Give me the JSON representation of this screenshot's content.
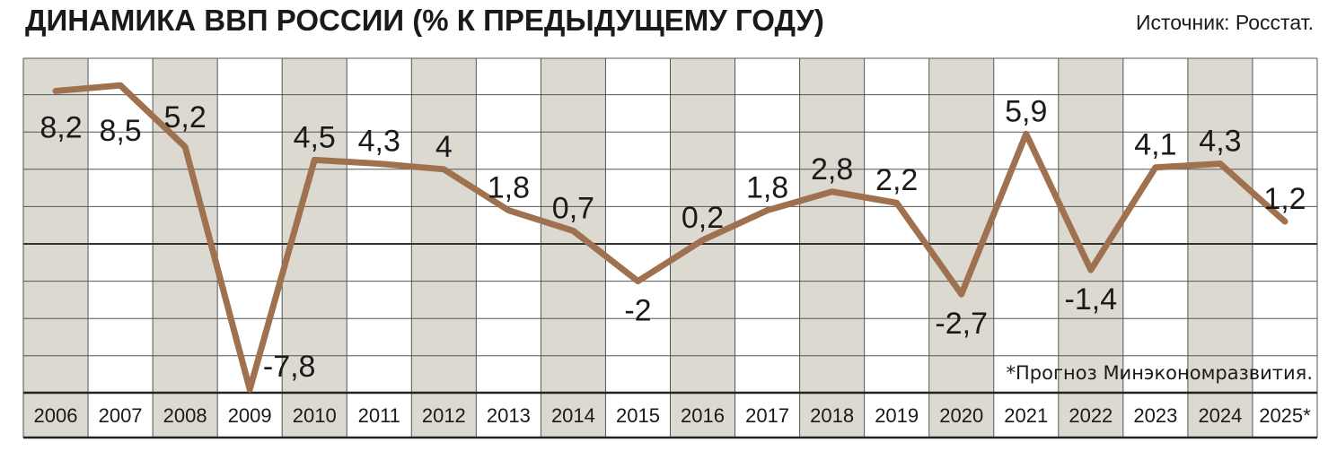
{
  "header": {
    "title": "ДИНАМИКА ВВП РОССИИ (% К ПРЕДЫДУЩЕМУ ГОДУ)",
    "source": "Источник: Росстат."
  },
  "footnote": "*Прогноз Минэкономразвития.",
  "colors": {
    "line": "#a0714f",
    "shaded_column": "#dcd9d1",
    "grid": "#555555",
    "zero_line": "#333333"
  },
  "chart_data": {
    "type": "line",
    "title": "ДИНАМИКА ВВП РОССИИ (% К ПРЕДЫДУЩЕМУ ГОДУ)",
    "categories": [
      "2006",
      "2007",
      "2008",
      "2009",
      "2010",
      "2011",
      "2012",
      "2013",
      "2014",
      "2015",
      "2016",
      "2017",
      "2018",
      "2019",
      "2020",
      "2021",
      "2022",
      "2023",
      "2024",
      "2025*"
    ],
    "values": [
      8.2,
      8.5,
      5.2,
      -7.8,
      4.5,
      4.3,
      4.0,
      1.8,
      0.7,
      -2.0,
      0.2,
      1.8,
      2.8,
      2.2,
      -2.7,
      5.9,
      -1.4,
      4.1,
      4.3,
      1.2
    ],
    "labels": [
      "8,2",
      "8,5",
      "5,2",
      "-7,8",
      "4,5",
      "4,3",
      "4",
      "1,8",
      "0,7",
      "-2",
      "0,2",
      "1,8",
      "2,8",
      "2,2",
      "-2,7",
      "5,9",
      "-1,4",
      "4,1",
      "4,3",
      "1,2"
    ],
    "ylim": [
      -8,
      10
    ],
    "grid": true,
    "shaded_columns": [
      0,
      2,
      4,
      6,
      8,
      10,
      12,
      14,
      16,
      18
    ]
  }
}
